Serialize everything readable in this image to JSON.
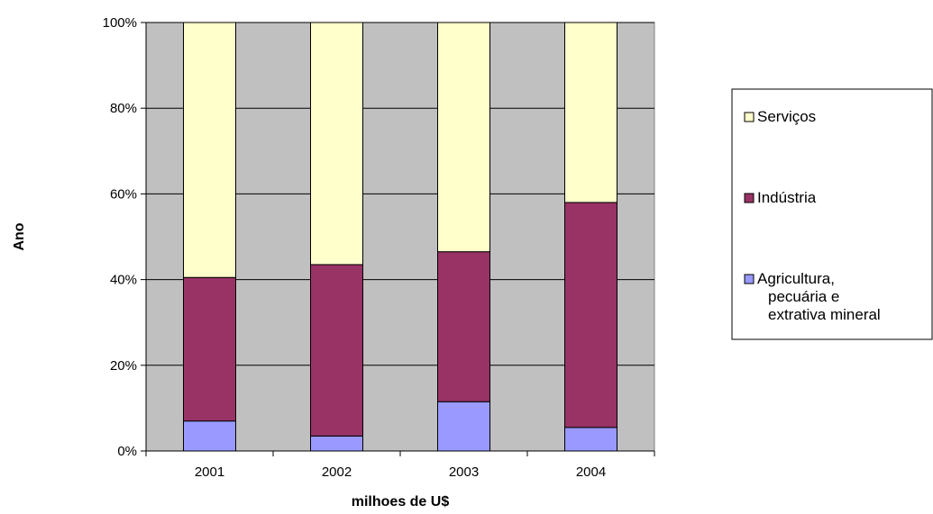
{
  "chart_data": {
    "type": "bar",
    "stacked": true,
    "normalized": true,
    "title": "",
    "xlabel": "milhoes de U$",
    "ylabel": "Ano",
    "categories": [
      "2001",
      "2002",
      "2003",
      "2004"
    ],
    "ylim": [
      0,
      100
    ],
    "yticks": [
      "0%",
      "20%",
      "40%",
      "60%",
      "80%",
      "100%"
    ],
    "grid": true,
    "legend_position": "right",
    "series": [
      {
        "name": "Agricultura, pecuária e extrativa mineral",
        "legend_lines": [
          "Agricultura,",
          "pecuária e",
          "extrativa mineral"
        ],
        "color": "#9999ff",
        "values": [
          7,
          3.5,
          11.5,
          5.5
        ]
      },
      {
        "name": "Indústria",
        "legend_lines": [
          "Indústria"
        ],
        "color": "#993366",
        "values": [
          33.5,
          40,
          35,
          52.5
        ]
      },
      {
        "name": "Serviços",
        "legend_lines": [
          "Serviços"
        ],
        "color": "#ffffcc",
        "values": [
          59.5,
          56.5,
          53.5,
          42
        ]
      }
    ],
    "plot_background": "#c0c0c0"
  }
}
